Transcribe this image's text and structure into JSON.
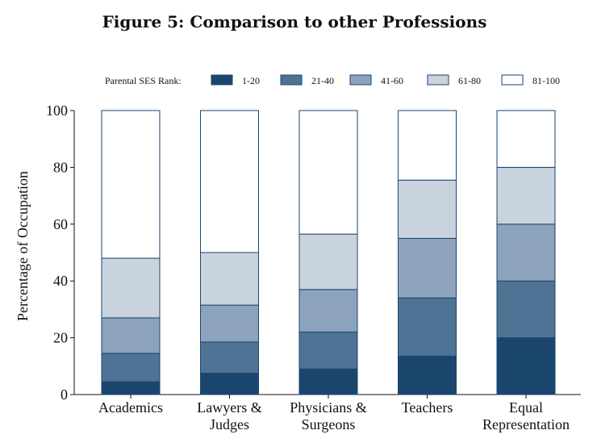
{
  "chart_data": {
    "type": "bar",
    "stacked": true,
    "title": "Figure 5: Comparison to other Professions",
    "ylabel": "Percentage of Occupation",
    "xlabel": "",
    "ylim": [
      0,
      100
    ],
    "yticks": [
      0,
      20,
      40,
      60,
      80,
      100
    ],
    "legend": {
      "title": "Parental SES Rank:",
      "placement": "top"
    },
    "categories": [
      [
        "Academics"
      ],
      [
        "Lawyers &",
        "Judges"
      ],
      [
        "Physicians &",
        "Surgeons"
      ],
      [
        "Teachers"
      ],
      [
        "Equal",
        "Representation"
      ]
    ],
    "series": [
      {
        "name": "1-20",
        "color": "#1a466e",
        "values": [
          4.5,
          7.5,
          9,
          13.5,
          20
        ]
      },
      {
        "name": "21-40",
        "color": "#4f7394",
        "values": [
          10,
          11,
          13,
          20.5,
          20
        ]
      },
      {
        "name": "41-60",
        "color": "#8ca3bb",
        "values": [
          12.5,
          13,
          15,
          21,
          20
        ]
      },
      {
        "name": "61-80",
        "color": "#c9d3de",
        "values": [
          21,
          18.5,
          19.5,
          20.5,
          20
        ]
      },
      {
        "name": "81-100",
        "color": "#ffffff",
        "values": [
          52,
          50,
          43.5,
          24.5,
          20
        ]
      }
    ]
  }
}
